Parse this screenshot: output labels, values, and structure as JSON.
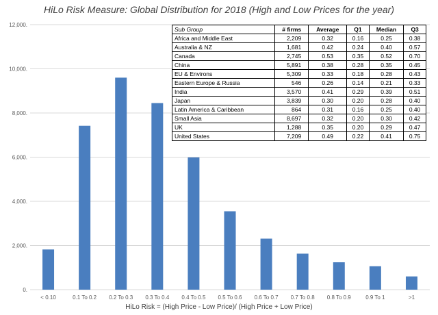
{
  "chart_data": {
    "type": "bar",
    "title": "HiLo Risk Measure: Global Distribution for 2018 (High and Low Prices for the year)",
    "xlabel": "HiLo Risk = (High Price - Low Price)/ (High Price + Low Price)",
    "ylabel": "",
    "ylim": [
      0,
      12000
    ],
    "yticks": [
      0,
      2000,
      4000,
      6000,
      8000,
      10000,
      12000
    ],
    "ytick_labels": [
      "0.",
      "2,000.",
      "4,000.",
      "6,000.",
      "8,000.",
      "10,000.",
      "12,000."
    ],
    "categories": [
      "< 0.10",
      "0.1 To 0.2",
      "0.2 To 0.3",
      "0.3 To 0.4",
      "0.4 To 0.5",
      "0.5 To 0.6",
      "0.6 To 0.7",
      "0.7 To 0.8",
      "0.8 To 0.9",
      "0.9 To 1",
      ">1"
    ],
    "values": [
      1820,
      7420,
      9600,
      8450,
      5990,
      3550,
      2310,
      1630,
      1240,
      1060,
      600
    ],
    "bar_color": "#4a7ebf",
    "grid_color": "#d9d9d9",
    "grid": true,
    "legend": false
  },
  "table": {
    "headers": [
      "Sub Group",
      "# firms",
      "Average",
      "Q1",
      "Median",
      "Q3"
    ],
    "rows": [
      [
        "Africa and Middle East",
        "2,209",
        "0.32",
        "0.16",
        "0.25",
        "0.38"
      ],
      [
        "Australia & NZ",
        "1,681",
        "0.42",
        "0.24",
        "0.40",
        "0.57"
      ],
      [
        "Canada",
        "2,745",
        "0.53",
        "0.35",
        "0.52",
        "0.70"
      ],
      [
        "China",
        "5,891",
        "0.38",
        "0.28",
        "0.35",
        "0.45"
      ],
      [
        "EU & Environs",
        "5,309",
        "0.33",
        "0.18",
        "0.28",
        "0.43"
      ],
      [
        "Eastern Europe & Russia",
        "546",
        "0.26",
        "0.14",
        "0.21",
        "0.33"
      ],
      [
        "India",
        "3,570",
        "0.41",
        "0.29",
        "0.39",
        "0.51"
      ],
      [
        "Japan",
        "3,839",
        "0.30",
        "0.20",
        "0.28",
        "0.40"
      ],
      [
        "Latin America & Caribbean",
        "864",
        "0.31",
        "0.16",
        "0.25",
        "0.40"
      ],
      [
        "Small Asia",
        "8,697",
        "0.32",
        "0.20",
        "0.30",
        "0.42"
      ],
      [
        "UK",
        "1,288",
        "0.35",
        "0.20",
        "0.29",
        "0.47"
      ],
      [
        "United States",
        "7,209",
        "0.49",
        "0.22",
        "0.41",
        "0.75"
      ]
    ]
  }
}
